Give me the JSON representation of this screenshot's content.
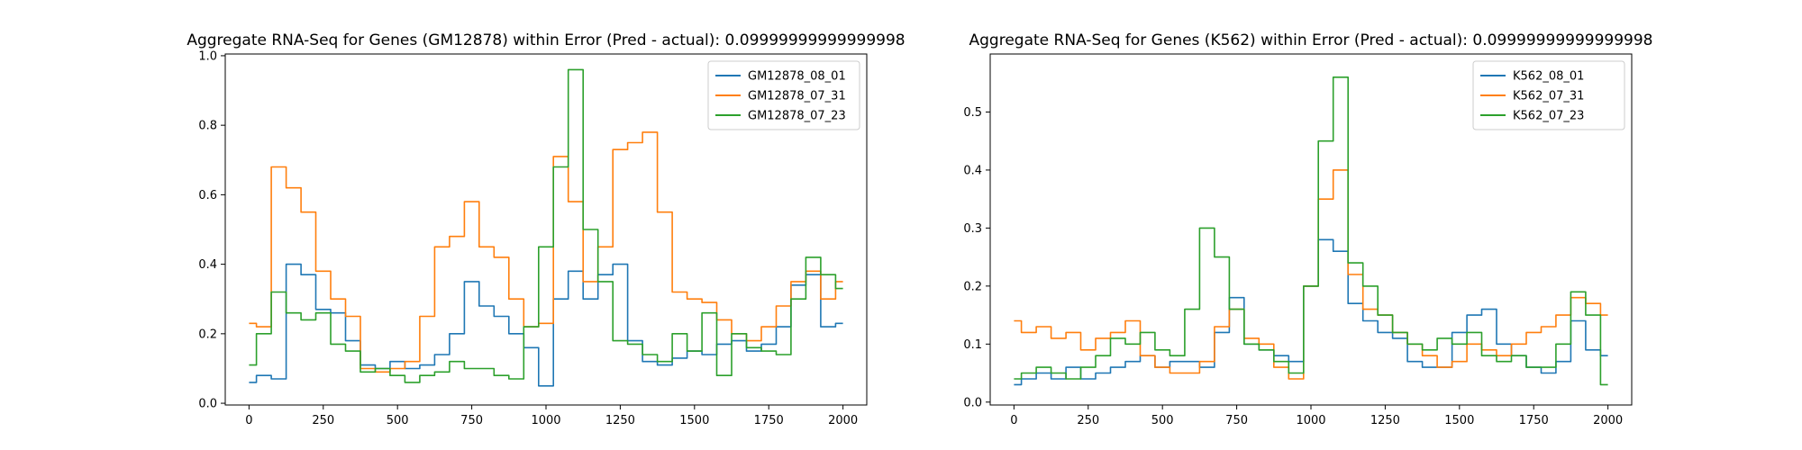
{
  "chart_data": [
    {
      "type": "line",
      "title": "Aggregate RNA-Seq for Genes (GM12878) within Error (Pred - actual): 0.09999999999999998",
      "xlabel": "",
      "ylabel": "",
      "xlim": [
        -80,
        2080
      ],
      "ylim": [
        -0.005,
        1.005
      ],
      "xticks": [
        0,
        250,
        500,
        750,
        1000,
        1250,
        1500,
        1750,
        2000
      ],
      "yticks": [
        0.0,
        0.2,
        0.4,
        0.6,
        0.8,
        1.0
      ],
      "ytick_labels": [
        "0.0",
        "0.2",
        "0.4",
        "0.6",
        "0.8",
        "1.0"
      ],
      "grid": false,
      "legend_position": "top-right",
      "x": [
        0,
        50,
        100,
        150,
        200,
        250,
        300,
        350,
        400,
        450,
        500,
        550,
        600,
        650,
        700,
        750,
        800,
        850,
        900,
        950,
        1000,
        1050,
        1100,
        1150,
        1200,
        1250,
        1300,
        1350,
        1400,
        1450,
        1500,
        1550,
        1600,
        1650,
        1700,
        1750,
        1800,
        1850,
        1900,
        1950,
        2000
      ],
      "series": [
        {
          "name": "GM12878_08_01",
          "color": "#1f77b4",
          "values": [
            0.06,
            0.08,
            0.07,
            0.4,
            0.37,
            0.27,
            0.26,
            0.18,
            0.11,
            0.1,
            0.12,
            0.1,
            0.11,
            0.14,
            0.2,
            0.35,
            0.28,
            0.25,
            0.2,
            0.16,
            0.05,
            0.3,
            0.38,
            0.3,
            0.37,
            0.4,
            0.18,
            0.12,
            0.11,
            0.13,
            0.15,
            0.14,
            0.17,
            0.18,
            0.15,
            0.17,
            0.22,
            0.34,
            0.37,
            0.22,
            0.23
          ]
        },
        {
          "name": "GM12878_07_31",
          "color": "#ff7f0e",
          "values": [
            0.23,
            0.22,
            0.68,
            0.62,
            0.55,
            0.38,
            0.3,
            0.25,
            0.1,
            0.09,
            0.1,
            0.12,
            0.25,
            0.45,
            0.48,
            0.58,
            0.45,
            0.42,
            0.3,
            0.22,
            0.23,
            0.71,
            0.58,
            0.35,
            0.45,
            0.73,
            0.75,
            0.78,
            0.55,
            0.32,
            0.3,
            0.29,
            0.24,
            0.2,
            0.18,
            0.22,
            0.28,
            0.35,
            0.38,
            0.3,
            0.35
          ]
        },
        {
          "name": "GM12878_07_23",
          "color": "#2ca02c",
          "values": [
            0.11,
            0.2,
            0.32,
            0.26,
            0.24,
            0.26,
            0.17,
            0.15,
            0.09,
            0.1,
            0.08,
            0.06,
            0.08,
            0.09,
            0.12,
            0.1,
            0.1,
            0.08,
            0.07,
            0.22,
            0.45,
            0.68,
            0.96,
            0.5,
            0.35,
            0.18,
            0.17,
            0.14,
            0.12,
            0.2,
            0.15,
            0.26,
            0.08,
            0.2,
            0.16,
            0.15,
            0.14,
            0.3,
            0.42,
            0.37,
            0.33
          ]
        }
      ]
    },
    {
      "type": "line",
      "title": "Aggregate RNA-Seq for Genes (K562) within Error (Pred - actual): 0.09999999999999998",
      "xlabel": "",
      "ylabel": "",
      "xlim": [
        -80,
        2080
      ],
      "ylim": [
        -0.005,
        0.6
      ],
      "xticks": [
        0,
        250,
        500,
        750,
        1000,
        1250,
        1500,
        1750,
        2000
      ],
      "yticks": [
        0.0,
        0.1,
        0.2,
        0.3,
        0.4,
        0.5
      ],
      "ytick_labels": [
        "0.0",
        "0.1",
        "0.2",
        "0.3",
        "0.4",
        "0.5"
      ],
      "grid": false,
      "legend_position": "top-right",
      "x": [
        0,
        50,
        100,
        150,
        200,
        250,
        300,
        350,
        400,
        450,
        500,
        550,
        600,
        650,
        700,
        750,
        800,
        850,
        900,
        950,
        1000,
        1050,
        1100,
        1150,
        1200,
        1250,
        1300,
        1350,
        1400,
        1450,
        1500,
        1550,
        1600,
        1650,
        1700,
        1750,
        1800,
        1850,
        1900,
        1950,
        2000
      ],
      "series": [
        {
          "name": "K562_08_01",
          "color": "#1f77b4",
          "values": [
            0.03,
            0.04,
            0.05,
            0.04,
            0.06,
            0.04,
            0.05,
            0.06,
            0.07,
            0.08,
            0.06,
            0.07,
            0.07,
            0.06,
            0.12,
            0.18,
            0.1,
            0.09,
            0.08,
            0.07,
            0.2,
            0.28,
            0.26,
            0.17,
            0.14,
            0.12,
            0.11,
            0.07,
            0.06,
            0.06,
            0.12,
            0.15,
            0.16,
            0.1,
            0.08,
            0.06,
            0.05,
            0.07,
            0.14,
            0.09,
            0.08
          ]
        },
        {
          "name": "K562_07_31",
          "color": "#ff7f0e",
          "values": [
            0.14,
            0.12,
            0.13,
            0.11,
            0.12,
            0.09,
            0.11,
            0.12,
            0.14,
            0.08,
            0.06,
            0.05,
            0.05,
            0.07,
            0.13,
            0.16,
            0.11,
            0.1,
            0.06,
            0.04,
            0.2,
            0.35,
            0.4,
            0.22,
            0.16,
            0.15,
            0.12,
            0.1,
            0.08,
            0.06,
            0.07,
            0.1,
            0.09,
            0.08,
            0.1,
            0.12,
            0.13,
            0.15,
            0.18,
            0.17,
            0.15
          ]
        },
        {
          "name": "K562_07_23",
          "color": "#2ca02c",
          "values": [
            0.04,
            0.05,
            0.06,
            0.05,
            0.04,
            0.06,
            0.08,
            0.11,
            0.1,
            0.12,
            0.09,
            0.08,
            0.16,
            0.3,
            0.25,
            0.16,
            0.1,
            0.09,
            0.07,
            0.05,
            0.2,
            0.45,
            0.56,
            0.24,
            0.2,
            0.15,
            0.12,
            0.1,
            0.09,
            0.11,
            0.1,
            0.12,
            0.08,
            0.07,
            0.08,
            0.06,
            0.06,
            0.1,
            0.19,
            0.15,
            0.03
          ]
        }
      ]
    }
  ]
}
